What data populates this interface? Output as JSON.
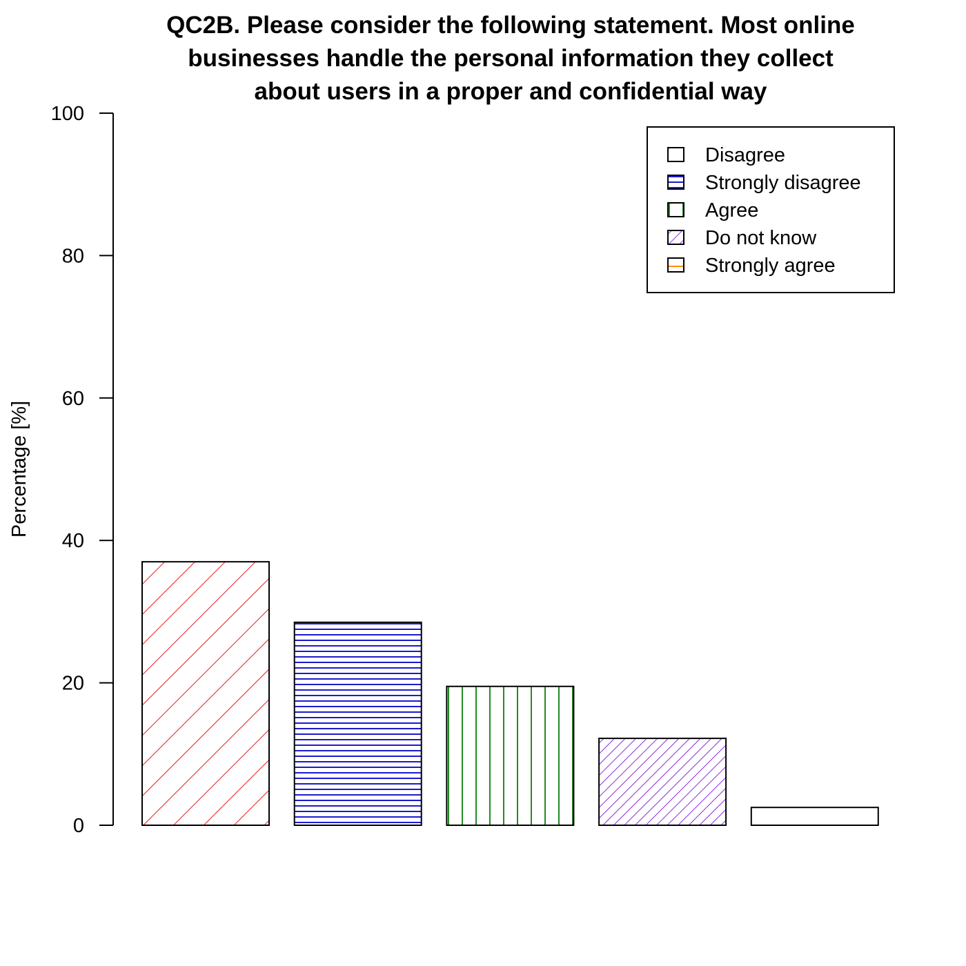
{
  "chart_data": {
    "type": "bar",
    "title_lines": [
      "QC2B. Please consider the following statement.  Most online",
      "businesses handle the personal information they collect",
      "about users in a proper and confidential way"
    ],
    "xlabel": "",
    "ylabel": "Percentage [%]",
    "ylim": [
      0,
      100
    ],
    "yticks": [
      "0",
      "20",
      "40",
      "60",
      "80",
      "100"
    ],
    "grid": false,
    "legend_position": "top-right",
    "series": [
      {
        "name": "Disagree",
        "value": 37.0,
        "color": "#e41a1c",
        "pattern": "diagonal-wide"
      },
      {
        "name": "Strongly disagree",
        "value": 28.5,
        "color": "#1a1acd",
        "pattern": "horizontal"
      },
      {
        "name": "Agree",
        "value": 19.5,
        "color": "#228b22",
        "pattern": "vertical"
      },
      {
        "name": "Do not know",
        "value": 12.2,
        "color": "#8a2be2",
        "pattern": "diagonal-dense"
      },
      {
        "name": "Strongly agree",
        "value": 2.5,
        "color": "#ff8c00",
        "pattern": "horizontal-sparse"
      }
    ]
  }
}
